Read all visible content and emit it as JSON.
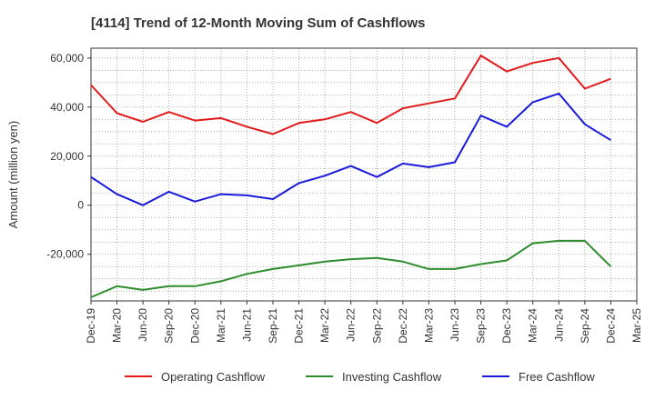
{
  "chart_data": {
    "type": "line",
    "title": "[4114]  Trend of 12-Month Moving Sum of Cashflows",
    "xlabel": "",
    "ylabel": "Amount (million yen)",
    "ylim": [
      -39000,
      64000
    ],
    "yticks": [
      60000,
      40000,
      20000,
      0,
      -20000
    ],
    "ytick_labels": [
      "60,000",
      "40,000",
      "20,000",
      "0",
      "-20,000"
    ],
    "x_tick_labels": [
      "Dec-19",
      "Mar-20",
      "Jun-20",
      "Sep-20",
      "Dec-20",
      "Mar-21",
      "Jun-21",
      "Sep-21",
      "Dec-21",
      "Mar-22",
      "Jun-22",
      "Sep-22",
      "Dec-22",
      "Mar-23",
      "Jun-23",
      "Sep-23",
      "Dec-23",
      "Mar-24",
      "Jun-24",
      "Sep-24",
      "Dec-24",
      "Mar-25"
    ],
    "grid": true,
    "legend_position": "bottom",
    "series": [
      {
        "name": "Operating Cashflow",
        "color": "#e31a1c",
        "values": [
          49000,
          37500,
          34000,
          38000,
          34500,
          35500,
          32000,
          29000,
          33500,
          35000,
          38000,
          33500,
          39500,
          41500,
          43500,
          61000,
          54500,
          58000,
          60000,
          47500,
          51500
        ]
      },
      {
        "name": "Investing Cashflow",
        "color": "#2e8b2e",
        "values": [
          -37500,
          -33000,
          -34500,
          -33000,
          -33000,
          -31000,
          -28000,
          -26000,
          -24500,
          -23000,
          -22000,
          -21500,
          -23000,
          -26000,
          -26000,
          -24000,
          -22500,
          -15500,
          -14500,
          -14500,
          -25000
        ]
      },
      {
        "name": "Free Cashflow",
        "color": "#1a1adb",
        "values": [
          11500,
          4500,
          0,
          5500,
          1500,
          4500,
          4000,
          2500,
          9000,
          12000,
          16000,
          11500,
          17000,
          15500,
          17500,
          36500,
          32000,
          42000,
          45500,
          33000,
          26500
        ]
      }
    ]
  }
}
